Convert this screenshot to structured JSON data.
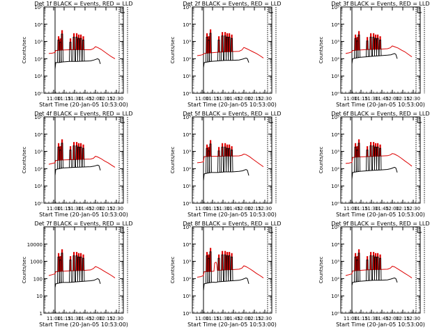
{
  "colors": {
    "events": "#000000",
    "lld": "#dd0000",
    "axes": "#000000"
  },
  "x_ticks": [
    "11:00",
    "11:15",
    "11:30",
    "11:45",
    "12:00",
    "12:15",
    "12:30"
  ],
  "y_tick_labels_exp": [
    "10⁰",
    "10¹",
    "10²",
    "10³",
    "10⁴",
    "10⁵"
  ],
  "y_tick_labels_num": [
    "1",
    "10",
    "100",
    "1000",
    "10000"
  ],
  "ylabel": "Counts/sec",
  "xlabel": "Start Time (20-Jan-05 10:53:00)",
  "chart_data": [
    {
      "type": "line",
      "title": "Det 1f BLACK = Events, RED = LLD",
      "xlabel": "Start Time (20-Jan-05 10:53:00)",
      "ylabel": "Counts/sec",
      "x_unit": "minutes since 10:53:00",
      "xlim": [
        -7,
        107
      ],
      "ylim": [
        1,
        100000
      ],
      "log_y": true,
      "markers_x": [
        9,
        120.5,
        113
      ],
      "spikes_x": [
        14,
        16.5,
        19,
        31,
        36,
        40,
        43,
        46,
        49.5
      ],
      "spikes_peak": [
        2000,
        1500,
        4500,
        1500,
        3000,
        3000,
        2500,
        2500,
        2000
      ],
      "series": [
        {
          "name": "BLACK = Events",
          "x": [
            9,
            10,
            15,
            20,
            30,
            40,
            50,
            60,
            65,
            70,
            72,
            74
          ],
          "y": [
            25,
            60,
            60,
            65,
            70,
            70,
            72,
            75,
            85,
            100,
            90,
            50
          ]
        },
        {
          "name": "RED = LLD",
          "x": [
            0,
            5,
            9,
            10,
            20,
            30,
            40,
            50,
            60,
            64,
            67,
            70,
            75,
            80,
            85,
            90,
            95
          ],
          "y": [
            200,
            210,
            230,
            300,
            320,
            330,
            340,
            330,
            330,
            380,
            500,
            450,
            350,
            250,
            180,
            130,
            100
          ]
        }
      ]
    },
    {
      "type": "line",
      "title": "Det 2f BLACK = Events, RED = LLD",
      "xlabel": "Start Time (20-Jan-05 10:53:00)",
      "ylabel": "Counts/sec",
      "x_unit": "minutes since 10:53:00",
      "xlim": [
        -7,
        107
      ],
      "ylim": [
        1,
        100000
      ],
      "log_y": true,
      "markers_x": [
        9,
        120.5,
        113
      ],
      "spikes_x": [
        14,
        16.5,
        19,
        31,
        36,
        40,
        43,
        46,
        49.5
      ],
      "spikes_peak": [
        3000,
        2000,
        5000,
        2000,
        3500,
        3500,
        3000,
        3000,
        2500
      ],
      "series": [
        {
          "name": "BLACK = Events",
          "x": [
            9,
            10,
            15,
            20,
            30,
            40,
            50,
            60,
            65,
            70,
            72,
            74
          ],
          "y": [
            30,
            60,
            65,
            70,
            75,
            80,
            80,
            85,
            95,
            110,
            100,
            60
          ]
        },
        {
          "name": "RED = LLD",
          "x": [
            0,
            5,
            9,
            10,
            20,
            30,
            40,
            50,
            60,
            64,
            67,
            70,
            75,
            80,
            85,
            90,
            95
          ],
          "y": [
            150,
            160,
            180,
            200,
            220,
            240,
            250,
            260,
            270,
            320,
            450,
            400,
            320,
            250,
            200,
            150,
            110
          ]
        }
      ]
    },
    {
      "type": "line",
      "title": "Det 3f BLACK = Events, RED = LLD",
      "xlabel": "Start Time (20-Jan-05 10:53:00)",
      "ylabel": "Counts/sec",
      "x_unit": "minutes since 10:53:00",
      "xlim": [
        -7,
        107
      ],
      "ylim": [
        1,
        100000
      ],
      "log_y": true,
      "markers_x": [
        9,
        120.5,
        113
      ],
      "spikes_x": [
        14,
        16.5,
        19,
        31,
        36,
        40,
        43,
        46,
        49.5
      ],
      "spikes_peak": [
        2500,
        1800,
        4000,
        1800,
        3000,
        3000,
        2500,
        2500,
        2000
      ],
      "series": [
        {
          "name": "BLACK = Events",
          "x": [
            9,
            10,
            15,
            20,
            30,
            40,
            50,
            60,
            65,
            70,
            72,
            74
          ],
          "y": [
            50,
            100,
            110,
            120,
            130,
            140,
            150,
            160,
            170,
            200,
            180,
            100
          ]
        },
        {
          "name": "RED = LLD",
          "x": [
            0,
            5,
            9,
            10,
            20,
            30,
            40,
            50,
            60,
            64,
            67,
            70,
            75,
            80,
            85,
            90,
            95
          ],
          "y": [
            200,
            220,
            250,
            300,
            320,
            340,
            350,
            360,
            380,
            430,
            550,
            500,
            420,
            320,
            250,
            180,
            130
          ]
        }
      ]
    },
    {
      "type": "line",
      "title": "Det 4f BLACK = Events, RED = LLD",
      "xlabel": "Start Time (20-Jan-05 10:53:00)",
      "ylabel": "Counts/sec",
      "x_unit": "minutes since 10:53:00",
      "xlim": [
        -7,
        107
      ],
      "ylim": [
        1,
        100000
      ],
      "log_y": true,
      "markers_x": [
        9,
        120.5,
        113
      ],
      "spikes_x": [
        14,
        16.5,
        19,
        31,
        36,
        40,
        43,
        46,
        49.5
      ],
      "spikes_peak": [
        3000,
        2000,
        5000,
        2000,
        3500,
        3500,
        3000,
        3000,
        2500
      ],
      "series": [
        {
          "name": "BLACK = Events",
          "x": [
            9,
            10,
            15,
            20,
            30,
            40,
            50,
            60,
            65,
            70,
            72,
            74
          ],
          "y": [
            40,
            90,
            100,
            110,
            115,
            120,
            125,
            130,
            140,
            160,
            150,
            80
          ]
        },
        {
          "name": "RED = LLD",
          "x": [
            0,
            5,
            9,
            10,
            20,
            30,
            40,
            50,
            60,
            64,
            67,
            70,
            75,
            80,
            85,
            90,
            95
          ],
          "y": [
            180,
            200,
            220,
            300,
            320,
            330,
            340,
            350,
            360,
            400,
            520,
            480,
            380,
            280,
            220,
            160,
            120
          ]
        }
      ]
    },
    {
      "type": "line",
      "title": "Det 5f BLACK = Events, RED = LLD",
      "xlabel": "Start Time (20-Jan-05 10:53:00)",
      "ylabel": "Counts/sec",
      "x_unit": "minutes since 10:53:00",
      "xlim": [
        -7,
        107
      ],
      "ylim": [
        1,
        100000
      ],
      "log_y": true,
      "markers_x": [
        9,
        120.5,
        113
      ],
      "spikes_x": [
        14,
        16.5,
        19,
        31,
        36,
        40,
        43,
        46,
        49.5
      ],
      "spikes_peak": [
        2500,
        1800,
        4500,
        1800,
        3000,
        3000,
        2500,
        2500,
        2000
      ],
      "series": [
        {
          "name": "BLACK = Events",
          "x": [
            9,
            10,
            15,
            20,
            30,
            40,
            50,
            60,
            65,
            70,
            72,
            74
          ],
          "y": [
            20,
            50,
            55,
            60,
            60,
            65,
            65,
            70,
            75,
            90,
            80,
            40
          ]
        },
        {
          "name": "RED = LLD",
          "x": [
            0,
            5,
            9,
            10,
            20,
            30,
            40,
            50,
            60,
            64,
            67,
            70,
            75,
            80,
            85,
            90,
            95
          ],
          "y": [
            220,
            230,
            250,
            500,
            520,
            520,
            530,
            540,
            550,
            600,
            700,
            650,
            500,
            350,
            250,
            180,
            130
          ]
        }
      ]
    },
    {
      "type": "line",
      "title": "Det 6f BLACK = Events, RED = LLD",
      "xlabel": "Start Time (20-Jan-05 10:53:00)",
      "ylabel": "Counts/sec",
      "x_unit": "minutes since 10:53:00",
      "xlim": [
        -7,
        107
      ],
      "ylim": [
        1,
        100000
      ],
      "log_y": true,
      "markers_x": [
        9,
        120.5,
        113
      ],
      "spikes_x": [
        14,
        16.5,
        19,
        31,
        36,
        40,
        43,
        46,
        49.5
      ],
      "spikes_peak": [
        3000,
        2000,
        5000,
        2000,
        3500,
        3500,
        3000,
        3000,
        2500
      ],
      "series": [
        {
          "name": "BLACK = Events",
          "x": [
            9,
            10,
            15,
            20,
            30,
            40,
            50,
            60,
            65,
            70,
            72,
            74
          ],
          "y": [
            25,
            60,
            65,
            70,
            75,
            80,
            85,
            90,
            100,
            120,
            110,
            60
          ]
        },
        {
          "name": "RED = LLD",
          "x": [
            0,
            5,
            9,
            10,
            20,
            30,
            40,
            50,
            60,
            64,
            67,
            70,
            75,
            80,
            85,
            90,
            95
          ],
          "y": [
            200,
            210,
            230,
            450,
            480,
            500,
            520,
            540,
            560,
            620,
            750,
            700,
            550,
            400,
            280,
            200,
            140
          ]
        }
      ]
    },
    {
      "type": "line",
      "title": "Det 7f BLACK = Events, RED = LLD",
      "xlabel": "Start Time (20-Jan-05 10:53:00)",
      "ylabel": "Counts/sec",
      "x_unit": "minutes since 10:53:00",
      "xlim": [
        -7,
        107
      ],
      "ylim": [
        1,
        100000
      ],
      "log_y": true,
      "markers_x": [
        9,
        120.5,
        113
      ],
      "spikes_x": [
        14,
        16.5,
        19,
        31,
        36,
        40,
        43,
        46,
        49.5
      ],
      "spikes_peak": [
        3000,
        2000,
        5000,
        2000,
        3500,
        3500,
        3000,
        3000,
        2500
      ],
      "series": [
        {
          "name": "BLACK = Events",
          "x": [
            9,
            10,
            15,
            20,
            30,
            40,
            50,
            60,
            65,
            70,
            72,
            74
          ],
          "y": [
            30,
            50,
            55,
            60,
            60,
            65,
            70,
            75,
            80,
            100,
            90,
            50
          ]
        },
        {
          "name": "RED = LLD",
          "x": [
            0,
            5,
            9,
            10,
            20,
            30,
            40,
            50,
            60,
            64,
            67,
            70,
            75,
            80,
            85,
            90,
            95
          ],
          "y": [
            150,
            170,
            190,
            250,
            270,
            280,
            290,
            300,
            320,
            380,
            500,
            450,
            350,
            260,
            200,
            150,
            110
          ]
        }
      ]
    },
    {
      "type": "line",
      "title": "Det 8f BLACK = Events, RED = LLD",
      "xlabel": "Start Time (20-Jan-05 10:53:00)",
      "ylabel": "Counts/sec",
      "x_unit": "minutes since 10:53:00",
      "xlim": [
        -7,
        107
      ],
      "ylim": [
        1,
        100000
      ],
      "log_y": true,
      "markers_x": [
        9,
        120.5,
        113
      ],
      "spikes_x": [
        14,
        16.5,
        19,
        31,
        36,
        40,
        43,
        46,
        49.5
      ],
      "spikes_peak": [
        3500,
        2500,
        6000,
        2500,
        4000,
        4000,
        3500,
        3500,
        3000
      ],
      "series": [
        {
          "name": "BLACK = Events",
          "x": [
            9,
            10,
            15,
            20,
            24,
            26,
            28,
            30,
            40,
            50,
            60,
            65,
            70,
            72,
            74
          ],
          "y": [
            20,
            50,
            55,
            60,
            62,
            60,
            62,
            65,
            70,
            75,
            80,
            90,
            110,
            100,
            50
          ]
        },
        {
          "name": "RED = LLD",
          "x": [
            0,
            5,
            9,
            10,
            20,
            24,
            25,
            27,
            28,
            29,
            40,
            50,
            60,
            64,
            67,
            70,
            75,
            80,
            85,
            90,
            95
          ],
          "y": [
            120,
            130,
            150,
            250,
            260,
            270,
            800,
            900,
            700,
            300,
            320,
            330,
            350,
            400,
            550,
            500,
            380,
            280,
            200,
            150,
            110
          ]
        }
      ]
    },
    {
      "type": "line",
      "title": "Det 9f BLACK = Events, RED = LLD",
      "xlabel": "Start Time (20-Jan-05 10:53:00)",
      "ylabel": "Counts/sec",
      "x_unit": "minutes since 10:53:00",
      "xlim": [
        -7,
        107
      ],
      "ylim": [
        1,
        100000
      ],
      "log_y": true,
      "markers_x": [
        9,
        120.5,
        113
      ],
      "spikes_x": [
        14,
        16.5,
        19,
        31,
        36,
        40,
        43,
        46,
        49.5
      ],
      "spikes_peak": [
        3000,
        2000,
        5000,
        2000,
        3500,
        3500,
        3000,
        3000,
        2500
      ],
      "series": [
        {
          "name": "BLACK = Events",
          "x": [
            9,
            10,
            15,
            20,
            30,
            40,
            50,
            60,
            65,
            70,
            72,
            74
          ],
          "y": [
            40,
            60,
            65,
            70,
            75,
            80,
            80,
            85,
            95,
            110,
            100,
            60
          ]
        },
        {
          "name": "RED = LLD",
          "x": [
            0,
            5,
            9,
            10,
            20,
            30,
            40,
            50,
            60,
            64,
            67,
            70,
            75,
            80,
            85,
            90,
            95
          ],
          "y": [
            150,
            170,
            190,
            280,
            300,
            320,
            330,
            340,
            350,
            400,
            520,
            480,
            360,
            270,
            200,
            150,
            110
          ]
        }
      ]
    }
  ]
}
